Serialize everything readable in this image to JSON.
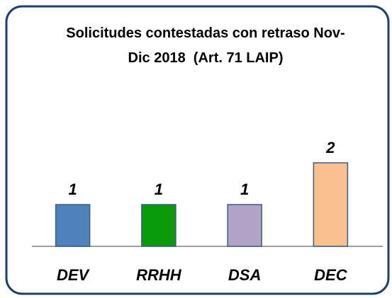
{
  "chart_data": {
    "type": "bar",
    "title": "Solicitudes contestadas con retraso Nov-Dic 2018  (Art. 71 LAIP)",
    "categories": [
      "DEV",
      "RRHH",
      "DSA",
      "DEC"
    ],
    "values": [
      1,
      1,
      1,
      2
    ],
    "colors": [
      "#4f81bd",
      "#0a9a0a",
      "#b3a2c7",
      "#fac090"
    ]
  }
}
